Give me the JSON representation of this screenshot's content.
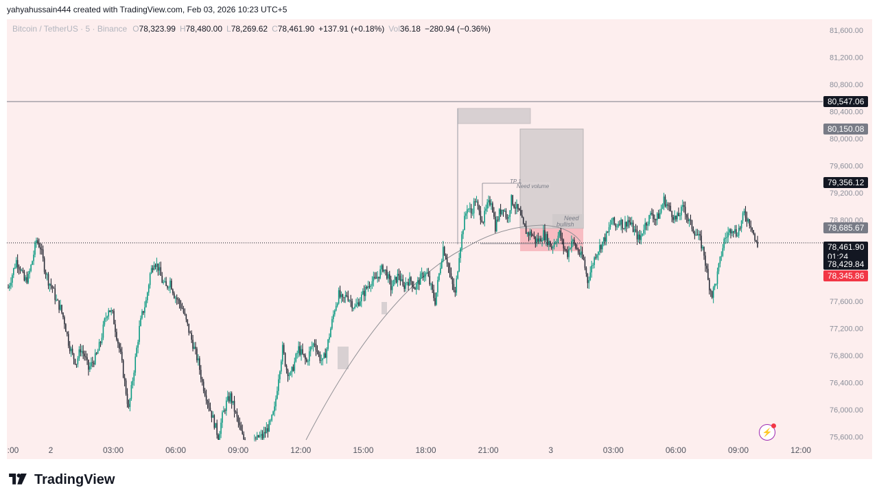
{
  "caption": "yahyahussain444 created with TradingView.com, Feb 03, 2026 10:23 UTC+5",
  "legend": {
    "symbol": "Bitcoin / TetherUS · 5 · Binance",
    "o_label": "O",
    "o": "78,323.99",
    "h_label": "H",
    "h": "78,480.00",
    "l_label": "L",
    "l": "78,269.62",
    "c_label": "C",
    "c": "78,461.90",
    "change": "+137.91 (+0.18%)",
    "vol_label": "Vol",
    "vol": "36.18",
    "vol_change": "−280.94 (−0.36%)"
  },
  "brand": {
    "name": "TradingView"
  },
  "icons": {
    "alert": "lightning-alert-icon",
    "logo": "tradingview-logo-icon"
  },
  "colors": {
    "up": "#089981",
    "down": "#f23645",
    "background": "#fdeeee",
    "line_dark": "#131722",
    "tag_gray": "#787b86"
  },
  "chart_data": {
    "type": "candlestick",
    "ylim": [
      75500,
      81800
    ],
    "price_ticks": [
      "81,600.00",
      "81,200.00",
      "80,800.00",
      "80,400.00",
      "80,000.00",
      "79,600.00",
      "79,200.00",
      "78,800.00",
      "77,600.00",
      "77,200.00",
      "76,800.00",
      "76,400.00",
      "76,000.00",
      "75,600.00"
    ],
    "time_ticks": [
      ":00",
      "2",
      "03:00",
      "06:00",
      "09:00",
      "12:00",
      "15:00",
      "18:00",
      "21:00",
      "3",
      "03:00",
      "06:00",
      "09:00",
      "12:00"
    ],
    "horizontal_line": 80547.06,
    "last_price_line": 78461.9,
    "price_tags": [
      {
        "label": "80,547.06",
        "price": 80547.06,
        "style": "dark"
      },
      {
        "label": "80,150.08",
        "price": 80150.08,
        "style": "gray"
      },
      {
        "label": "79,356.12",
        "price": 79356.12,
        "style": "dark"
      },
      {
        "label": "78,685.67",
        "price": 78685.67,
        "style": "gray"
      },
      {
        "label": "78,461.90",
        "sub": "01:24",
        "price": 78461.9,
        "style": "dark"
      },
      {
        "label": "78,429.84",
        "price": 78429.84,
        "style": "dark"
      },
      {
        "label": "78,345.86",
        "price": 78345.86,
        "style": "red"
      }
    ],
    "annotations": {
      "tp": "TP 1",
      "need_volume": "Need volume",
      "need_bullish_1": "Need",
      "need_bullish_2": "bullish"
    },
    "close_path": [
      [
        0,
        77800
      ],
      [
        3,
        78000
      ],
      [
        6,
        78200
      ],
      [
        9,
        78100
      ],
      [
        12,
        77900
      ],
      [
        15,
        77950
      ],
      [
        18,
        78200
      ],
      [
        21,
        78500
      ],
      [
        24,
        78400
      ],
      [
        27,
        78100
      ],
      [
        30,
        77900
      ],
      [
        33,
        77800
      ],
      [
        36,
        77600
      ],
      [
        39,
        77500
      ],
      [
        42,
        77300
      ],
      [
        45,
        77000
      ],
      [
        48,
        76800
      ],
      [
        51,
        76700
      ],
      [
        54,
        76900
      ],
      [
        57,
        76800
      ],
      [
        60,
        76600
      ],
      [
        63,
        76700
      ],
      [
        66,
        76800
      ],
      [
        69,
        77000
      ],
      [
        72,
        77300
      ],
      [
        75,
        77500
      ],
      [
        78,
        77400
      ],
      [
        81,
        77100
      ],
      [
        84,
        76800
      ],
      [
        87,
        76400
      ],
      [
        90,
        76000
      ],
      [
        92,
        76300
      ],
      [
        94,
        76600
      ],
      [
        96,
        76900
      ],
      [
        98,
        77200
      ],
      [
        100,
        77400
      ],
      [
        103,
        77600
      ],
      [
        106,
        78000
      ],
      [
        109,
        78200
      ],
      [
        112,
        78100
      ],
      [
        115,
        77900
      ],
      [
        118,
        77800
      ],
      [
        121,
        77900
      ],
      [
        124,
        77700
      ],
      [
        127,
        77600
      ],
      [
        130,
        77500
      ],
      [
        133,
        77300
      ],
      [
        136,
        77100
      ],
      [
        139,
        76900
      ],
      [
        142,
        76700
      ],
      [
        145,
        76400
      ],
      [
        148,
        76200
      ],
      [
        151,
        76000
      ],
      [
        154,
        75800
      ],
      [
        157,
        75600
      ],
      [
        160,
        75900
      ],
      [
        163,
        76100
      ],
      [
        166,
        76200
      ],
      [
        169,
        76000
      ],
      [
        172,
        75800
      ],
      [
        175,
        75600
      ],
      [
        178,
        75500
      ],
      [
        181,
        75500
      ],
      [
        184,
        75500
      ],
      [
        187,
        75600
      ],
      [
        190,
        75600
      ],
      [
        193,
        75700
      ],
      [
        196,
        75800
      ],
      [
        199,
        76000
      ],
      [
        202,
        76500
      ],
      [
        205,
        76900
      ],
      [
        208,
        76600
      ],
      [
        211,
        76500
      ],
      [
        214,
        76700
      ],
      [
        217,
        76900
      ],
      [
        220,
        76800
      ],
      [
        223,
        76700
      ],
      [
        226,
        76900
      ],
      [
        229,
        77000
      ],
      [
        232,
        76800
      ],
      [
        235,
        76700
      ],
      [
        238,
        76900
      ],
      [
        241,
        77200
      ],
      [
        244,
        77500
      ],
      [
        247,
        77700
      ],
      [
        250,
        77600
      ],
      [
        253,
        77700
      ],
      [
        256,
        77600
      ],
      [
        259,
        77500
      ],
      [
        262,
        77600
      ],
      [
        265,
        77700
      ],
      [
        268,
        77800
      ],
      [
        271,
        77900
      ],
      [
        274,
        77900
      ],
      [
        277,
        78000
      ],
      [
        280,
        78100
      ],
      [
        283,
        78000
      ],
      [
        286,
        77800
      ],
      [
        289,
        77900
      ],
      [
        292,
        78000
      ],
      [
        295,
        77800
      ],
      [
        298,
        77900
      ],
      [
        301,
        77900
      ],
      [
        304,
        77800
      ],
      [
        307,
        77900
      ],
      [
        310,
        78000
      ],
      [
        313,
        78000
      ],
      [
        316,
        77800
      ],
      [
        319,
        77600
      ],
      [
        322,
        78000
      ],
      [
        325,
        78400
      ],
      [
        328,
        78200
      ],
      [
        331,
        77900
      ],
      [
        334,
        77700
      ],
      [
        337,
        78300
      ],
      [
        340,
        78700
      ],
      [
        343,
        79000
      ],
      [
        346,
        78900
      ],
      [
        349,
        79100
      ],
      [
        352,
        78900
      ],
      [
        355,
        78800
      ],
      [
        358,
        79000
      ],
      [
        361,
        79100
      ],
      [
        364,
        78700
      ],
      [
        367,
        78900
      ],
      [
        370,
        79000
      ],
      [
        373,
        78800
      ],
      [
        376,
        79100
      ],
      [
        379,
        79000
      ],
      [
        382,
        78900
      ],
      [
        385,
        78700
      ],
      [
        388,
        78600
      ],
      [
        391,
        78600
      ],
      [
        394,
        78500
      ],
      [
        397,
        78500
      ],
      [
        400,
        78600
      ],
      [
        403,
        78500
      ],
      [
        406,
        78400
      ],
      [
        409,
        78500
      ],
      [
        412,
        78600
      ],
      [
        415,
        78400
      ],
      [
        418,
        78300
      ],
      [
        421,
        78500
      ],
      [
        424,
        78400
      ],
      [
        427,
        78300
      ],
      [
        430,
        78200
      ],
      [
        433,
        77900
      ],
      [
        436,
        78100
      ],
      [
        439,
        78300
      ],
      [
        442,
        78400
      ],
      [
        445,
        78500
      ],
      [
        448,
        78600
      ],
      [
        451,
        78800
      ],
      [
        454,
        78700
      ],
      [
        457,
        78800
      ],
      [
        460,
        78700
      ],
      [
        463,
        78800
      ],
      [
        466,
        78700
      ],
      [
        469,
        78600
      ],
      [
        472,
        78500
      ],
      [
        475,
        78700
      ],
      [
        478,
        78800
      ],
      [
        481,
        78900
      ],
      [
        484,
        78800
      ],
      [
        487,
        78900
      ],
      [
        490,
        79100
      ],
      [
        493,
        79000
      ],
      [
        496,
        78900
      ],
      [
        499,
        78800
      ],
      [
        502,
        78900
      ],
      [
        505,
        79000
      ],
      [
        508,
        78800
      ],
      [
        511,
        78700
      ],
      [
        514,
        78600
      ],
      [
        517,
        78500
      ],
      [
        520,
        78300
      ],
      [
        523,
        77900
      ],
      [
        526,
        77700
      ],
      [
        529,
        77900
      ],
      [
        532,
        78200
      ],
      [
        535,
        78500
      ],
      [
        538,
        78600
      ],
      [
        541,
        78700
      ],
      [
        544,
        78600
      ],
      [
        547,
        78700
      ],
      [
        550,
        78900
      ],
      [
        553,
        78800
      ],
      [
        556,
        78700
      ],
      [
        558,
        78500
      ],
      [
        560,
        78400
      ]
    ]
  }
}
